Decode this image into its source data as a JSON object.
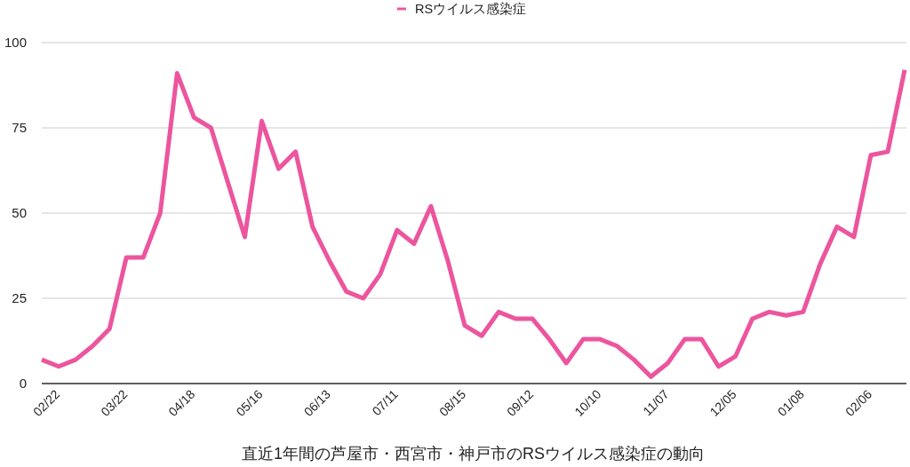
{
  "chart_data": {
    "type": "line",
    "xlabel": "直近1年間の芦屋市・西宮市・神戸市のRSウイルス感染症の動向",
    "categories": [
      null,
      "02/22",
      null,
      null,
      null,
      "03/22",
      null,
      null,
      null,
      "04/18",
      null,
      null,
      null,
      "05/16",
      null,
      null,
      null,
      "06/13",
      null,
      null,
      null,
      "07/11",
      null,
      null,
      null,
      "08/15",
      null,
      null,
      null,
      "09/12",
      null,
      null,
      null,
      "10/10",
      null,
      null,
      null,
      "11/07",
      null,
      null,
      null,
      "12/05",
      null,
      null,
      null,
      "01/08",
      null,
      null,
      null,
      "02/06",
      null,
      null
    ],
    "series": [
      {
        "name": "RSウイルス感染症",
        "color": "#ec559e",
        "values": [
          7,
          5,
          7,
          11,
          16,
          37,
          37,
          50,
          91,
          78,
          75,
          59,
          43,
          77,
          63,
          68,
          46,
          36,
          27,
          25,
          32,
          45,
          41,
          52,
          36,
          17,
          14,
          21,
          19,
          19,
          13,
          6,
          13,
          13,
          11,
          7,
          2,
          6,
          13,
          13,
          5,
          8,
          19,
          21,
          20,
          21,
          35,
          46,
          43,
          67,
          68,
          92
        ]
      }
    ],
    "ylim": [
      0,
      100
    ],
    "yticks": [
      0,
      25,
      50,
      75,
      100
    ],
    "grid": "y",
    "legend": "top"
  }
}
